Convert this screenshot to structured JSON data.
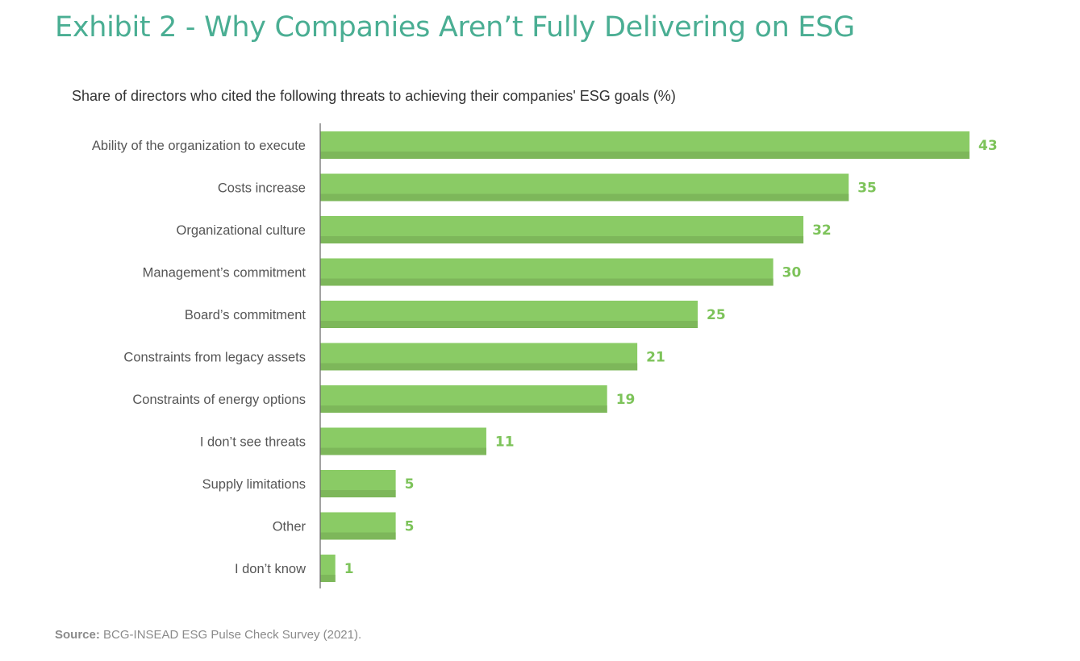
{
  "header": {
    "title": "Exhibit 2 - Why Companies Aren’t Fully Delivering on ESG"
  },
  "footer": {
    "source_label": "Source:",
    "source_text": " BCG-INSEAD ESG Pulse Check Survey (2021)."
  },
  "colors": {
    "title": "#4AAE93",
    "bar_top": "#8ACB65",
    "bar_bottom": "#7DB75A",
    "value_label": "#7DC35A",
    "axis": "#666666"
  },
  "chart_data": {
    "type": "bar",
    "orientation": "horizontal",
    "title": "Share of directors who cited the following threats to achieving their companies' ESG goals (%)",
    "xlabel": "",
    "ylabel": "",
    "xlim": [
      0,
      43
    ],
    "grid": false,
    "categories": [
      "Ability of the organization to execute",
      "Costs increase",
      "Organizational culture",
      "Management’s commitment",
      "Board’s commitment",
      "Constraints from legacy assets",
      "Constraints of energy options",
      "I don’t see threats",
      "Supply limitations",
      "Other",
      "I don’t know"
    ],
    "values": [
      43,
      35,
      32,
      30,
      25,
      21,
      19,
      11,
      5,
      5,
      1
    ],
    "data_labels": [
      "43",
      "35",
      "32",
      "30",
      "25",
      "21",
      "19",
      "11",
      "5",
      "5",
      "1"
    ]
  }
}
